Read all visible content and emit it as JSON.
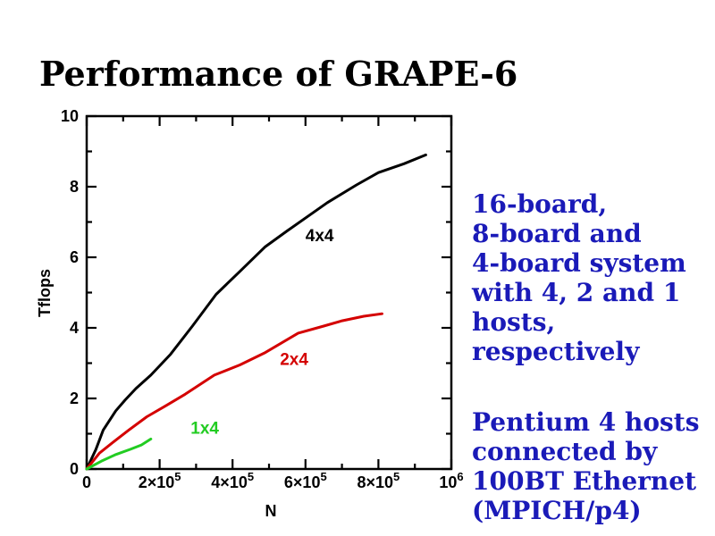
{
  "title": "Performance of GRAPE-6",
  "chart_data": {
    "type": "line",
    "title": "",
    "xlabel": "N",
    "ylabel": "Tflops",
    "xlim": [
      0,
      1000000
    ],
    "ylim": [
      0,
      10
    ],
    "grid": false,
    "legend_position": "inline-labels",
    "x_major_ticks": [
      0,
      200000,
      400000,
      600000,
      800000,
      1000000
    ],
    "x_minor_ticks": [
      100000,
      300000,
      500000,
      700000,
      900000
    ],
    "y_major_ticks": [
      0,
      2,
      4,
      6,
      8,
      10
    ],
    "y_minor_ticks": [
      1,
      3,
      5,
      7,
      9
    ],
    "x_tick_labels": [
      {
        "base": "0",
        "sup": "",
        "value": 0
      },
      {
        "base": "2×10",
        "sup": "5",
        "value": 200000
      },
      {
        "base": "4×10",
        "sup": "5",
        "value": 400000
      },
      {
        "base": "6×10",
        "sup": "5",
        "value": 600000
      },
      {
        "base": "8×10",
        "sup": "5",
        "value": 800000
      },
      {
        "base": "10",
        "sup": "6",
        "value": 1000000
      }
    ],
    "y_tick_labels": [
      {
        "text": "0",
        "value": 0
      },
      {
        "text": "2",
        "value": 2
      },
      {
        "text": "4",
        "value": 4
      },
      {
        "text": "6",
        "value": 6
      },
      {
        "text": "8",
        "value": 8
      },
      {
        "text": "10",
        "value": 10
      }
    ],
    "series": [
      {
        "name": "4x4",
        "color": "#000000",
        "label_xy": [
          600000,
          6.45
        ],
        "points": [
          [
            0,
            0
          ],
          [
            25000,
            0.55
          ],
          [
            45000,
            1.1
          ],
          [
            80000,
            1.65
          ],
          [
            105000,
            1.95
          ],
          [
            135000,
            2.28
          ],
          [
            176000,
            2.66
          ],
          [
            230000,
            3.25
          ],
          [
            290000,
            4.05
          ],
          [
            355000,
            4.95
          ],
          [
            420000,
            5.6
          ],
          [
            490000,
            6.3
          ],
          [
            550000,
            6.75
          ],
          [
            660000,
            7.55
          ],
          [
            740000,
            8.05
          ],
          [
            800000,
            8.4
          ],
          [
            870000,
            8.65
          ],
          [
            930000,
            8.9
          ]
        ]
      },
      {
        "name": "2x4",
        "color": "#d40000",
        "label_xy": [
          530000,
          2.95
        ],
        "points": [
          [
            0,
            0
          ],
          [
            35000,
            0.45
          ],
          [
            75000,
            0.78
          ],
          [
            115000,
            1.1
          ],
          [
            165000,
            1.48
          ],
          [
            215000,
            1.78
          ],
          [
            270000,
            2.12
          ],
          [
            350000,
            2.66
          ],
          [
            420000,
            2.95
          ],
          [
            490000,
            3.3
          ],
          [
            580000,
            3.85
          ],
          [
            650000,
            4.05
          ],
          [
            700000,
            4.2
          ],
          [
            760000,
            4.33
          ],
          [
            810000,
            4.4
          ]
        ]
      },
      {
        "name": "1x4",
        "color": "#22cc22",
        "label_xy": [
          285000,
          1.0
        ],
        "points": [
          [
            0,
            0
          ],
          [
            40000,
            0.22
          ],
          [
            80000,
            0.41
          ],
          [
            120000,
            0.56
          ],
          [
            150000,
            0.68
          ],
          [
            176000,
            0.85
          ]
        ]
      }
    ]
  },
  "annotations": {
    "color": "#1a1ab8",
    "right_top": {
      "lines": [
        "16-board,",
        "8-board and",
        "4-board system",
        "with 4, 2 and 1",
        "hosts,",
        "respectively"
      ]
    },
    "right_bottom": {
      "lines": [
        "Pentium 4 hosts",
        "connected by",
        "100BT Ethernet",
        "(MPICH/p4)"
      ]
    }
  }
}
